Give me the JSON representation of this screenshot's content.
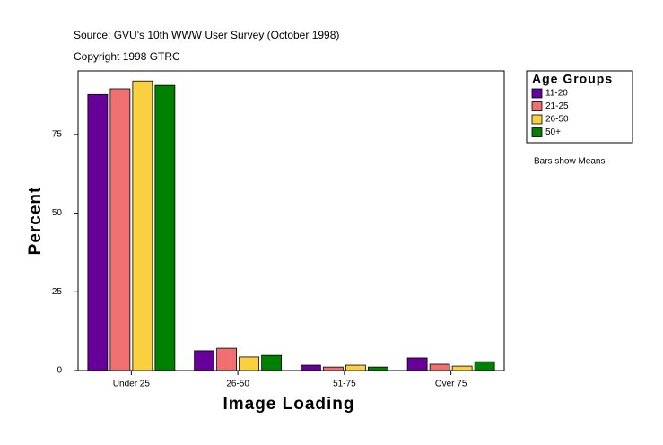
{
  "chart_data": {
    "type": "bar",
    "source": "Source: GVU's 10th WWW User Survey (October 1998)",
    "copyright": "Copyright 1998 GTRC",
    "x_label": "Image Loading",
    "y_label": "Percent",
    "note": "Bars show Means",
    "legend_title": "Age Groups",
    "legend_position": "right",
    "categories": [
      "Under 25",
      "26-50",
      "51-75",
      "Over 75"
    ],
    "series": [
      {
        "name": "11-20",
        "color": "#660099",
        "values": [
          87.7,
          6.3,
          1.7,
          4.0
        ]
      },
      {
        "name": "21-25",
        "color": "#f07070",
        "values": [
          89.5,
          7.1,
          1.1,
          2.0
        ]
      },
      {
        "name": "26-50",
        "color": "#f8d040",
        "values": [
          92.0,
          4.3,
          1.7,
          1.4
        ]
      },
      {
        "name": "50+",
        "color": "#008000",
        "values": [
          90.6,
          4.8,
          1.1,
          2.8
        ]
      }
    ],
    "ylim": [
      0,
      95.2
    ],
    "yticks": [
      0,
      25,
      50,
      75
    ]
  }
}
